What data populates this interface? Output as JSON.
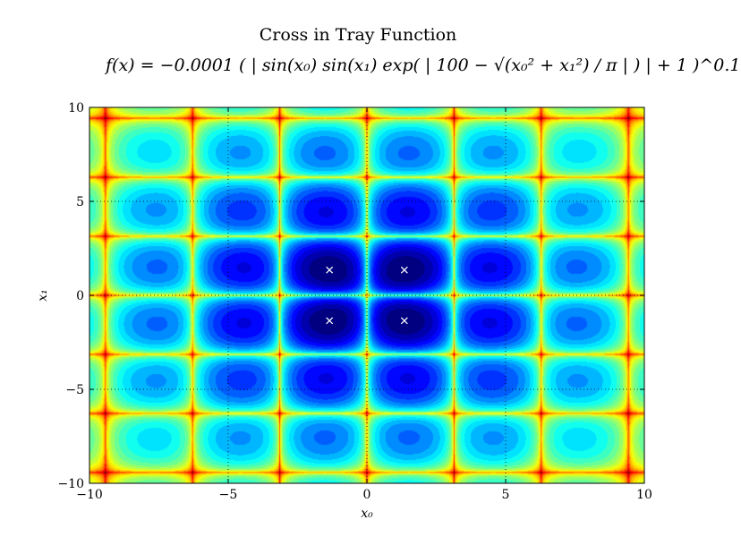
{
  "chart_data": {
    "type": "heatmap",
    "title": "Cross in Tray Function",
    "formula": "f(x) = −0.0001 ( | sin(x₀) sin(x₁) exp( | 100 − √(x₀² + x₁²) / π | ) | + 1 )^0.1",
    "xlabel": "x₀",
    "ylabel": "x₁",
    "xlim": [
      -10,
      10
    ],
    "ylim": [
      -10,
      10
    ],
    "xticks": [
      -10,
      -5,
      0,
      5,
      10
    ],
    "yticks": [
      -10,
      -5,
      0,
      5,
      10
    ],
    "xtick_labels": [
      "−10",
      "−5",
      "0",
      "5",
      "10"
    ],
    "ytick_labels": [
      "−10",
      "−5",
      "0",
      "5",
      "10"
    ],
    "grid": true,
    "colormap": "jet",
    "minima": [
      {
        "x": -1.3491,
        "y": 1.3491
      },
      {
        "x": 1.3491,
        "y": 1.3491
      },
      {
        "x": -1.3491,
        "y": -1.3491
      },
      {
        "x": 1.3491,
        "y": -1.3491
      }
    ],
    "minima_marker": "x",
    "minima_color": "#ffffff"
  }
}
